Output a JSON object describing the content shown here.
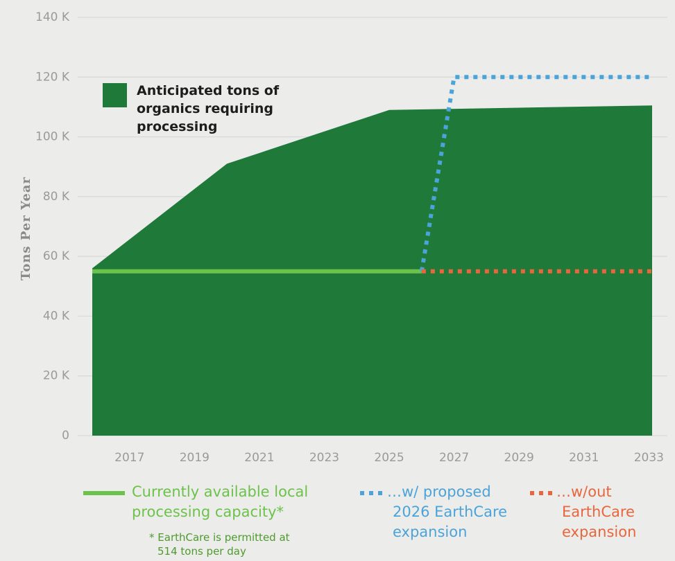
{
  "chart_data": {
    "type": "area",
    "y_label": "Tons Per Year",
    "xlim": [
      2015.85,
      2033.1
    ],
    "xticks": [
      2017,
      2019,
      2021,
      2023,
      2025,
      2027,
      2029,
      2031,
      2033
    ],
    "ylim": [
      0,
      140000
    ],
    "yticks": [
      {
        "value": 0,
        "label": "0"
      },
      {
        "value": 20000,
        "label": "20 K"
      },
      {
        "value": 40000,
        "label": "40 K"
      },
      {
        "value": 60000,
        "label": "60 K"
      },
      {
        "value": 80000,
        "label": "80 K"
      },
      {
        "value": 100000,
        "label": "100 K"
      },
      {
        "value": 120000,
        "label": "120 K"
      },
      {
        "value": 140000,
        "label": "140 K"
      }
    ],
    "grid": true,
    "series": [
      {
        "name": "Anticipated tons of organics requiring processing",
        "type": "area",
        "color": "#1f7a3a",
        "x": [
          2015.85,
          2020,
          2025,
          2033.1
        ],
        "values": [
          56000,
          91000,
          109000,
          110500
        ]
      },
      {
        "name": "Currently available local processing capacity*",
        "type": "line",
        "dash": "solid",
        "color": "#6cc24a",
        "x": [
          2015.85,
          2026
        ],
        "values": [
          55000,
          55000
        ]
      },
      {
        "name": "…w/ proposed 2026 EarthCare expansion",
        "type": "line",
        "dash": "dotted",
        "color": "#4ba3d9",
        "x": [
          2026,
          2027,
          2033.1
        ],
        "values": [
          55000,
          120000,
          120000
        ]
      },
      {
        "name": "…w/out EarthCare expansion",
        "type": "line",
        "dash": "dotted",
        "color": "#e8663d",
        "x": [
          2026,
          2033.1
        ],
        "values": [
          55000,
          55000
        ]
      }
    ],
    "footnote": "* EarthCare is permitted at 514 tons per day"
  }
}
